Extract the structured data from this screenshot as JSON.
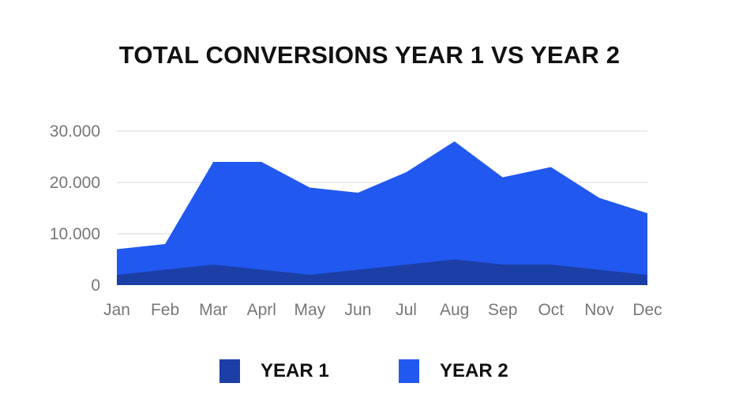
{
  "chart_data": {
    "type": "area",
    "title": "TOTAL CONVERSIONS YEAR 1 VS YEAR 2",
    "xlabel": "",
    "ylabel": "",
    "categories": [
      "Jan",
      "Feb",
      "Mar",
      "Aprl",
      "May",
      "Jun",
      "Jul",
      "Aug",
      "Sep",
      "Oct",
      "Nov",
      "Dec"
    ],
    "ylim": [
      0,
      30000
    ],
    "yticks": [
      0,
      10000,
      20000,
      30000
    ],
    "ytick_labels": [
      "0",
      "10.000",
      "20.000",
      "30.000"
    ],
    "grid": true,
    "legend_position": "bottom",
    "series": [
      {
        "name": "YEAR 2",
        "color": "#2158f0",
        "values": [
          7000,
          8000,
          24000,
          24000,
          19000,
          18000,
          22000,
          28000,
          21000,
          23000,
          17000,
          14000
        ]
      },
      {
        "name": "YEAR 1",
        "color": "#1c3fa6",
        "values": [
          2000,
          3000,
          4000,
          3000,
          2000,
          3000,
          4000,
          5000,
          4000,
          4000,
          3000,
          2000
        ]
      }
    ]
  }
}
